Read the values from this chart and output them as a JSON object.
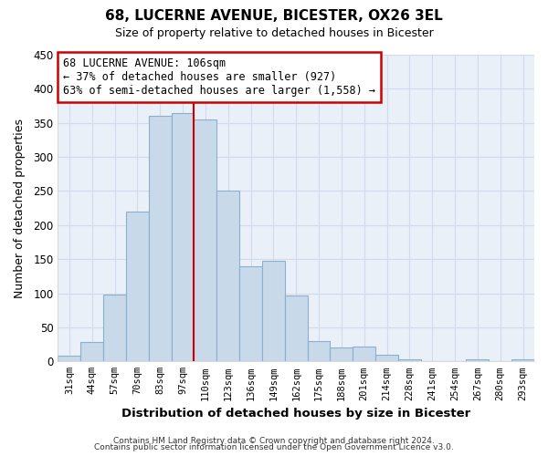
{
  "title": "68, LUCERNE AVENUE, BICESTER, OX26 3EL",
  "subtitle": "Size of property relative to detached houses in Bicester",
  "xlabel": "Distribution of detached houses by size in Bicester",
  "ylabel": "Number of detached properties",
  "bar_color": "#c8d9ea",
  "bar_edge_color": "#8ab0cc",
  "categories": [
    "31sqm",
    "44sqm",
    "57sqm",
    "70sqm",
    "83sqm",
    "97sqm",
    "110sqm",
    "123sqm",
    "136sqm",
    "149sqm",
    "162sqm",
    "175sqm",
    "188sqm",
    "201sqm",
    "214sqm",
    "228sqm",
    "241sqm",
    "254sqm",
    "267sqm",
    "280sqm",
    "293sqm"
  ],
  "values": [
    8,
    28,
    98,
    220,
    360,
    365,
    355,
    250,
    140,
    148,
    97,
    30,
    20,
    22,
    10,
    3,
    1,
    0,
    3,
    0,
    3
  ],
  "ylim": [
    0,
    450
  ],
  "yticks": [
    0,
    50,
    100,
    150,
    200,
    250,
    300,
    350,
    400,
    450
  ],
  "vline_x": 6.0,
  "vline_color": "#cc0000",
  "annotation_title": "68 LUCERNE AVENUE: 106sqm",
  "annotation_line1": "← 37% of detached houses are smaller (927)",
  "annotation_line2": "63% of semi-detached houses are larger (1,558) →",
  "annotation_box_color": "#ffffff",
  "annotation_box_edge": "#cc0000",
  "footer1": "Contains HM Land Registry data © Crown copyright and database right 2024.",
  "footer2": "Contains public sector information licensed under the Open Government Licence v3.0.",
  "grid_color": "#d0dcec",
  "plot_bg_color": "#eaf0f8",
  "fig_bg_color": "#ffffff"
}
